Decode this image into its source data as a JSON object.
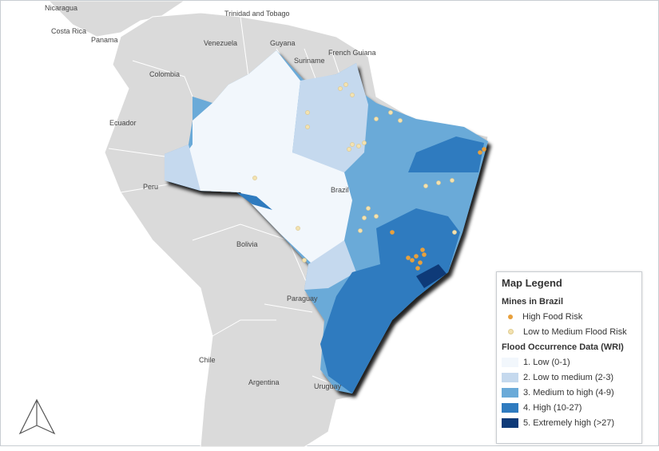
{
  "countries": [
    "Nicaragua",
    "Costa Rica",
    "Panama",
    "Trinidad and Tobago",
    "Venezuela",
    "Guyana",
    "French Guiana",
    "Suriname",
    "Colombia",
    "Ecuador",
    "Peru",
    "Brazil",
    "Bolivia",
    "Paraguay",
    "Chile",
    "Argentina",
    "Uruguay"
  ],
  "legend": {
    "title": "Map Legend",
    "mines_title": "Mines in Brazil",
    "mines": [
      {
        "label": "High Food Risk",
        "color": "#e8a03c"
      },
      {
        "label": "Low to Medium Flood Risk",
        "color": "#f3e2b0"
      }
    ],
    "flood_title": "Flood Occurrence Data (WRI)",
    "flood": [
      {
        "label": "1. Low (0-1)",
        "color": "#f2f7fc"
      },
      {
        "label": "2. Low to medium (2-3)",
        "color": "#c5d9ee"
      },
      {
        "label": "3. Medium to high (4-9)",
        "color": "#6aaad8"
      },
      {
        "label": "4. High (10-27)",
        "color": "#2f7bbf"
      },
      {
        "label": "5. Extremely high (>27)",
        "color": "#0e3a78"
      }
    ]
  },
  "icons": {
    "north_arrow": "north-arrow-icon"
  }
}
